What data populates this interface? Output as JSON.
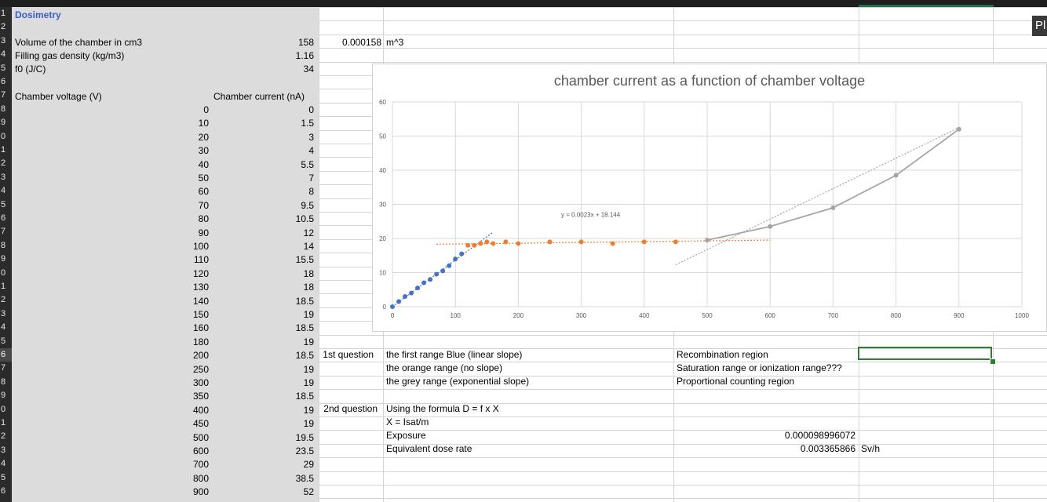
{
  "row_numbers": [
    "1",
    "2",
    "3",
    "4",
    "5",
    "6",
    "7",
    "8",
    "9",
    "0",
    "1",
    "2",
    "3",
    "4",
    "5",
    "6",
    "7",
    "8",
    "9",
    "0",
    "1",
    "2",
    "3",
    "4",
    "5",
    "6",
    "7",
    "8",
    "9",
    "0",
    "1",
    "2",
    "3",
    "4",
    "5",
    "6"
  ],
  "active_row_index": 25,
  "sheet": {
    "title": "Dosimetry",
    "params": [
      {
        "label": "Volume of the chamber in cm3",
        "value": "158",
        "converted": "0.000158",
        "unit": "m^3"
      },
      {
        "label": "Filling gas density (kg/m3)",
        "value": "1.16"
      },
      {
        "label": "f0 (J/C)",
        "value": "34"
      }
    ],
    "col_header_voltage": "Chamber voltage (V)",
    "col_header_current": "Chamber current (nA)",
    "rows": [
      [
        "0",
        "0"
      ],
      [
        "10",
        "1.5"
      ],
      [
        "20",
        "3"
      ],
      [
        "30",
        "4"
      ],
      [
        "40",
        "5.5"
      ],
      [
        "50",
        "7"
      ],
      [
        "60",
        "8"
      ],
      [
        "70",
        "9.5"
      ],
      [
        "80",
        "10.5"
      ],
      [
        "90",
        "12"
      ],
      [
        "100",
        "14"
      ],
      [
        "110",
        "15.5"
      ],
      [
        "120",
        "18"
      ],
      [
        "130",
        "18"
      ],
      [
        "140",
        "18.5"
      ],
      [
        "150",
        "19"
      ],
      [
        "160",
        "18.5"
      ],
      [
        "180",
        "19"
      ],
      [
        "200",
        "18.5"
      ],
      [
        "250",
        "19"
      ],
      [
        "300",
        "19"
      ],
      [
        "350",
        "18.5"
      ],
      [
        "400",
        "19"
      ],
      [
        "450",
        "19"
      ],
      [
        "500",
        "19.5"
      ],
      [
        "600",
        "23.5"
      ],
      [
        "700",
        "29"
      ],
      [
        "800",
        "38.5"
      ],
      [
        "900",
        "52"
      ]
    ],
    "q1_label": "1st question",
    "q1_lines": [
      "the first range Blue (linear slope)",
      "the orange range (no slope)",
      "the grey range (exponential slope)"
    ],
    "q1_answers": [
      "Recombination region",
      "Saturation range or ionization range???",
      "Proportional counting region"
    ],
    "q2_label": "2nd question",
    "q2_lines": [
      "Using the formula D = f x X",
      "X = Isat/m",
      "Exposure",
      "Equivalent dose rate"
    ],
    "exposure_value": "0.000098996072",
    "dose_rate_value": "0.003365866",
    "dose_rate_unit": "Sv/h"
  },
  "partial_label": "Pl",
  "chart_data": {
    "type": "scatter",
    "title": "chamber current as a function of chamber voltage",
    "xlim": [
      0,
      1000
    ],
    "ylim": [
      0,
      60
    ],
    "x_ticks": [
      "0",
      "100",
      "200",
      "300",
      "400",
      "500",
      "600",
      "700",
      "800",
      "900",
      "1000"
    ],
    "y_ticks": [
      "0",
      "10",
      "20",
      "30",
      "40",
      "50",
      "60"
    ],
    "grid": true,
    "series": [
      {
        "color": "#4472c4",
        "points": [
          [
            0,
            0
          ],
          [
            10,
            1.5
          ],
          [
            20,
            3
          ],
          [
            30,
            4
          ],
          [
            40,
            5.5
          ],
          [
            50,
            7
          ],
          [
            60,
            8
          ],
          [
            70,
            9.5
          ],
          [
            80,
            10.5
          ],
          [
            90,
            12
          ],
          [
            100,
            14
          ],
          [
            110,
            15.5
          ]
        ]
      },
      {
        "color": "#ed7d31",
        "points": [
          [
            120,
            18
          ],
          [
            130,
            18
          ],
          [
            140,
            18.5
          ],
          [
            150,
            19
          ],
          [
            160,
            18.5
          ],
          [
            180,
            19
          ],
          [
            200,
            18.5
          ],
          [
            250,
            19
          ],
          [
            300,
            19
          ],
          [
            350,
            18.5
          ],
          [
            400,
            19
          ],
          [
            450,
            19
          ]
        ]
      },
      {
        "color": "#a5a5a5",
        "points": [
          [
            500,
            19.5
          ],
          [
            600,
            23.5
          ],
          [
            700,
            29
          ],
          [
            800,
            38.5
          ],
          [
            900,
            52
          ]
        ]
      }
    ],
    "trendlines": [
      {
        "color": "#4472c4",
        "slope": 0.1367,
        "intercept": 0,
        "x_range": [
          0,
          160
        ]
      },
      {
        "color": "#ed7d31",
        "slope": 0.0023,
        "intercept": 18.144,
        "x_range": [
          70,
          600
        ]
      },
      {
        "color": "#a5a5a5",
        "slope": 0.0893,
        "intercept": -27.9,
        "x_range": [
          450,
          900
        ]
      }
    ],
    "equation_label": "y = 0.0023x + 18.144",
    "equation_anchor": [
      315,
      27
    ]
  }
}
